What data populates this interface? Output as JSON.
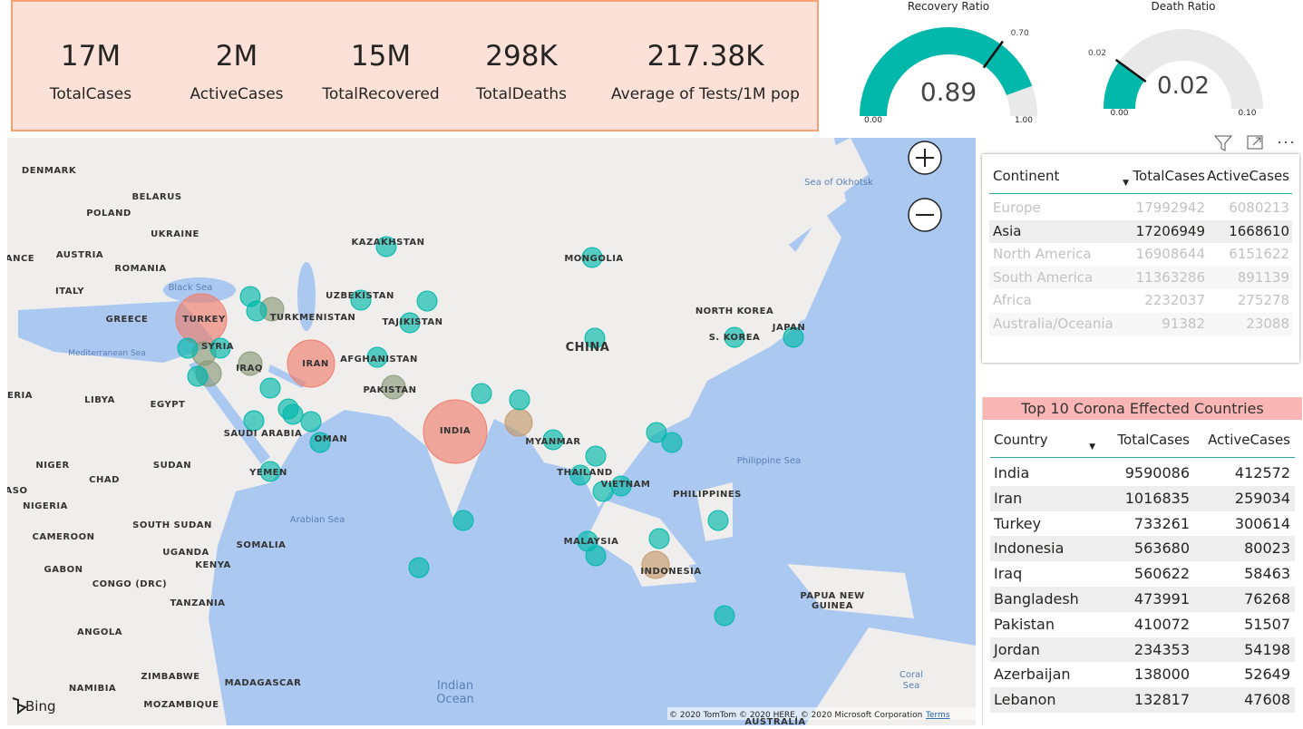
{
  "kpis": [
    {
      "value": "17M",
      "label": "TotalCases"
    },
    {
      "value": "2M",
      "label": "ActiveCases"
    },
    {
      "value": "15M",
      "label": "TotalRecovered"
    },
    {
      "value": "298K",
      "label": "TotalDeaths"
    },
    {
      "value": "217.38K",
      "label": "Average of Tests/1M pop"
    }
  ],
  "gauges": [
    {
      "title": "Recovery Ratio",
      "value": 0.89,
      "min": {
        "value": 0,
        "label": "0.00"
      },
      "max": {
        "value": 1,
        "label": "1.00"
      },
      "target": {
        "value": 0.7,
        "label": "0.70"
      }
    },
    {
      "title": "Death Ratio",
      "value": 0.02,
      "min": {
        "value": 0,
        "label": "0.00"
      },
      "max": {
        "value": 0.1,
        "label": "0.10"
      },
      "target": {
        "value": 0.02,
        "label": "0.02"
      }
    }
  ],
  "map": {
    "country_labels": [
      "DENMARK",
      "BELARUS",
      "POLAND",
      "UKRAINE",
      "AUSTRIA",
      "ANCE",
      "ROMANIA",
      "ITALY",
      "GREECE",
      "TURKEY",
      "SYRIA",
      "IRAQ",
      "IRAN",
      "KAZAKHSTAN",
      "UZBEKISTAN",
      "TURKMENISTAN",
      "TAJIKISTAN",
      "AFGHANISTAN",
      "PAKISTAN",
      "INDIA",
      "MONGOLIA",
      "CHINA",
      "NORTH KOREA",
      "S. KOREA",
      "JAPAN",
      "MYANMAR",
      "THAILAND",
      "VIETNAM",
      "PHILIPPINES",
      "MALAYSIA",
      "INDONESIA",
      "PAPUA NEW",
      "GUINEA",
      "ERIA",
      "LIBYA",
      "EGYPT",
      "SAUDI ARABIA",
      "OMAN",
      "YEMEN",
      "NIGER",
      "CHAD",
      "SUDAN",
      "ASO",
      "NIGERIA",
      "SOUTH SUDAN",
      "CAMEROON",
      "SOMALIA",
      "UGANDA",
      "KENYA",
      "GABON",
      "CONGO (DRC)",
      "TANZANIA",
      "ANGOLA",
      "ZIMBABWE",
      "MADAGASCAR",
      "NAMIBIA",
      "MOZAMBIQUE",
      "AUSTRALIA"
    ],
    "sea_labels": [
      "Sea of Okhotsk",
      "Black Sea",
      "Mediterranean Sea",
      "Arabian Sea",
      "Philippine Sea",
      "Indian",
      "Ocean",
      "Coral",
      "Sea"
    ],
    "logo": "Bing",
    "copyright": "© 2020 TomTom © 2020 HERE, © 2020 Microsoft Corporation",
    "terms": "Terms"
  },
  "continent_table": {
    "columns": [
      "Continent",
      "TotalCases",
      "ActiveCases"
    ],
    "rows": [
      [
        "Europe",
        17992942,
        6080213
      ],
      [
        "Asia",
        17206949,
        1668610
      ],
      [
        "North America",
        16908644,
        6151622
      ],
      [
        "South America",
        11363286,
        891139
      ],
      [
        "Africa",
        2232037,
        275278
      ],
      [
        "Australia/Oceania",
        91382,
        23088
      ]
    ]
  },
  "top10_table": {
    "title": "Top 10 Corona Effected Countries",
    "columns": [
      "Country",
      "TotalCases",
      "ActiveCases"
    ],
    "rows": [
      [
        "India",
        9590086,
        412572
      ],
      [
        "Iran",
        1016835,
        259034
      ],
      [
        "Turkey",
        733261,
        300614
      ],
      [
        "Indonesia",
        563680,
        80023
      ],
      [
        "Iraq",
        560622,
        58463
      ],
      [
        "Bangladesh",
        473991,
        76268
      ],
      [
        "Pakistan",
        410072,
        51507
      ],
      [
        "Jordan",
        234353,
        54198
      ],
      [
        "Azerbaijan",
        138000,
        52649
      ],
      [
        "Lebanon",
        132817,
        47608
      ]
    ]
  }
}
